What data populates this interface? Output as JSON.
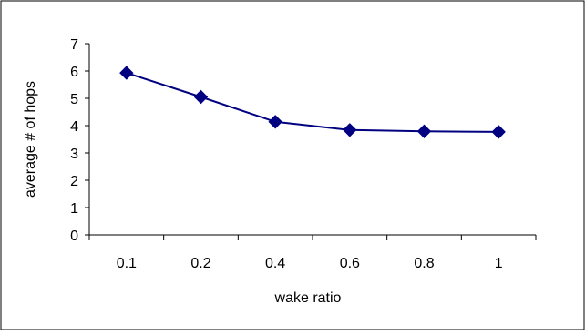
{
  "chart_data": {
    "type": "line",
    "categories": [
      "0.1",
      "0.2",
      "0.4",
      "0.6",
      "0.8",
      "1"
    ],
    "series": [
      {
        "values": [
          5.93,
          5.05,
          4.14,
          3.84,
          3.79,
          3.77
        ],
        "color": "#000080",
        "marker": "diamond"
      }
    ],
    "xlabel": "wake ratio",
    "ylabel": "average # of hops",
    "ylim": [
      0,
      7
    ],
    "yticks": [
      "0",
      "1",
      "2",
      "3",
      "4",
      "5",
      "6",
      "7"
    ],
    "grid": false,
    "legend": "none"
  }
}
